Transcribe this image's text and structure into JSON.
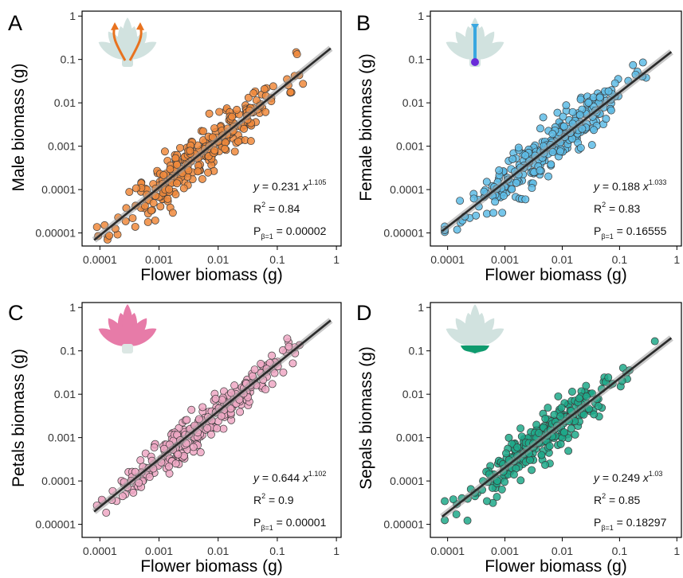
{
  "chart_data": [
    {
      "type": "scatter",
      "panel": "A",
      "xlabel": "Flower biomass (g)",
      "ylabel": "Male biomass (g)",
      "x_scale": "log10",
      "y_scale": "log10",
      "xlim": [
        5e-05,
        1.2
      ],
      "ylim": [
        5e-06,
        1.3
      ],
      "xticks": [
        "0.0001",
        "0.001",
        "0.01",
        "0.1",
        "1"
      ],
      "yticks": [
        "0.00001",
        "0.0001",
        "0.001",
        "0.01",
        "0.1",
        "1"
      ],
      "color": "#F08A3C",
      "fit": {
        "a": 0.231,
        "b": 1.105
      },
      "annotation": {
        "eq_prefix": "y =  0.231 x",
        "eq_exp": "1.105",
        "r2_label": "R",
        "r2_sup": "2",
        "r2_value": "=  0.84",
        "p_label": "P",
        "p_sub": "β=1",
        "p_value": "=  0.00002"
      },
      "scatter_spread": 0.28,
      "n_points": 300,
      "seed": 11,
      "icon": "stamens-icon"
    },
    {
      "type": "scatter",
      "panel": "B",
      "xlabel": "Flower biomass (g)",
      "ylabel": "Female biomass (g)",
      "x_scale": "log10",
      "y_scale": "log10",
      "xlim": [
        5e-05,
        1.2
      ],
      "ylim": [
        5e-06,
        1.3
      ],
      "xticks": [
        "0.0001",
        "0.001",
        "0.01",
        "0.1",
        "1"
      ],
      "yticks": [
        "0.00001",
        "0.0001",
        "0.001",
        "0.01",
        "0.1",
        "1"
      ],
      "color": "#5EBCE6",
      "fit": {
        "a": 0.188,
        "b": 1.033
      },
      "annotation": {
        "eq_prefix": "y =  0.188 x",
        "eq_exp": "1.033",
        "r2_label": "R",
        "r2_sup": "2",
        "r2_value": "=  0.83",
        "p_label": "P",
        "p_sub": "β=1",
        "p_value": "=  0.16555"
      },
      "scatter_spread": 0.26,
      "n_points": 300,
      "seed": 23,
      "icon": "pistil-icon"
    },
    {
      "type": "scatter",
      "panel": "C",
      "xlabel": "Flower biomass (g)",
      "ylabel": "Petals biomass (g)",
      "x_scale": "log10",
      "y_scale": "log10",
      "xlim": [
        5e-05,
        1.2
      ],
      "ylim": [
        5e-06,
        1.3
      ],
      "xticks": [
        "0.0001",
        "0.001",
        "0.01",
        "0.1",
        "1"
      ],
      "yticks": [
        "0.00001",
        "0.0001",
        "0.001",
        "0.01",
        "0.1",
        "1"
      ],
      "color": "#EEA8C4",
      "fit": {
        "a": 0.644,
        "b": 1.102
      },
      "annotation": {
        "eq_prefix": "y =  0.644 x",
        "eq_exp": "1.102",
        "r2_label": "R",
        "r2_sup": "2",
        "r2_value": "=  0.9",
        "p_label": "P",
        "p_sub": "β=1",
        "p_value": "=  0.00001"
      },
      "scatter_spread": 0.22,
      "n_points": 300,
      "seed": 37,
      "icon": "petals-icon"
    },
    {
      "type": "scatter",
      "panel": "D",
      "xlabel": "Flower biomass (g)",
      "ylabel": "Sepals biomass (g)",
      "x_scale": "log10",
      "y_scale": "log10",
      "xlim": [
        5e-05,
        1.2
      ],
      "ylim": [
        5e-06,
        1.3
      ],
      "xticks": [
        "0.0001",
        "0.001",
        "0.01",
        "0.1",
        "1"
      ],
      "yticks": [
        "0.00001",
        "0.0001",
        "0.001",
        "0.01",
        "0.1",
        "1"
      ],
      "color": "#1FA98A",
      "fit": {
        "a": 0.249,
        "b": 1.03
      },
      "annotation": {
        "eq_prefix": "y =  0.249 x",
        "eq_exp": "1.03",
        "r2_label": "R",
        "r2_sup": "2",
        "r2_value": "=  0.85",
        "p_label": "P",
        "p_sub": "β=1",
        "p_value": "=  0.18297"
      },
      "scatter_spread": 0.25,
      "n_points": 300,
      "seed": 53,
      "icon": "sepals-icon"
    }
  ]
}
